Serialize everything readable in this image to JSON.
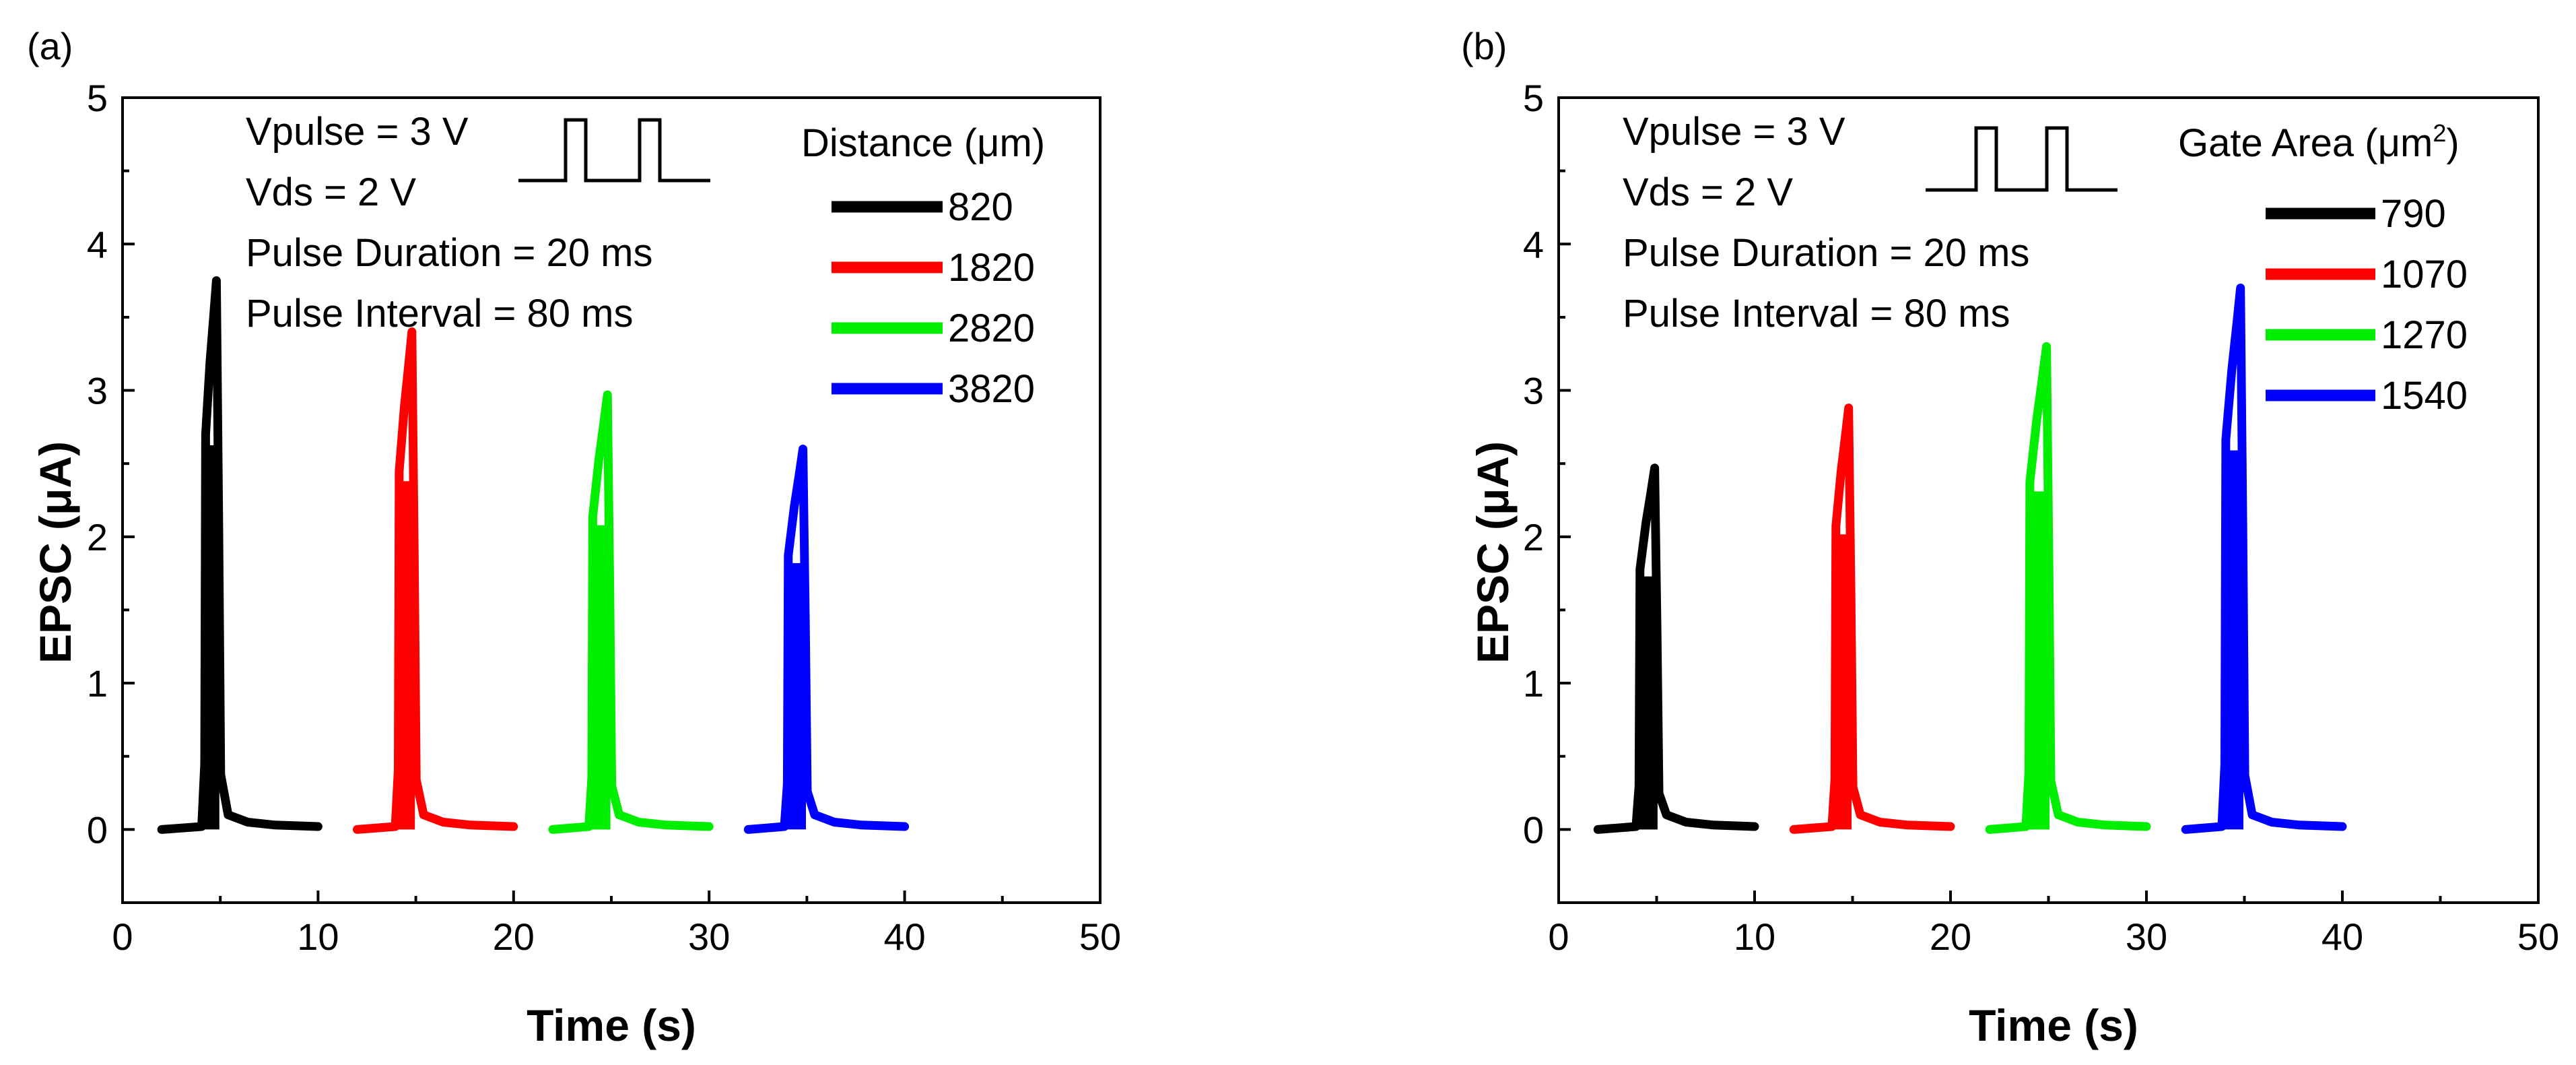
{
  "chart_data": [
    {
      "type": "line",
      "panel_label": "(a)",
      "xlabel": "Time (s)",
      "ylabel": "EPSC (μA)",
      "xlim": [
        0,
        50
      ],
      "ylim": [
        -0.5,
        5
      ],
      "xticks": [
        0,
        10,
        20,
        30,
        40,
        50
      ],
      "yticks": [
        0,
        1,
        2,
        3,
        4,
        5
      ],
      "annotations": [
        "Vpulse = 3 V",
        "Vds = 2 V",
        "Pulse Duration = 20 ms",
        "Pulse Interval = 80 ms"
      ],
      "legend_title": "Distance (μm)",
      "legend_title_sup": "",
      "legend_title_end": "",
      "series": [
        {
          "name": "820",
          "color": "#000000",
          "start": 2,
          "end": 10,
          "rise": 4.2,
          "peak_time": 4.8,
          "peak": 3.75
        },
        {
          "name": "1820",
          "color": "#ff0000",
          "start": 12,
          "end": 20,
          "rise": 14.1,
          "peak_time": 14.8,
          "peak": 3.4
        },
        {
          "name": "2820",
          "color": "#00ee00",
          "start": 22,
          "end": 30,
          "rise": 24.0,
          "peak_time": 24.8,
          "peak": 2.97
        },
        {
          "name": "3820",
          "color": "#0000ff",
          "start": 32,
          "end": 40,
          "rise": 34.0,
          "peak_time": 34.8,
          "peak": 2.6
        }
      ]
    },
    {
      "type": "line",
      "panel_label": "(b)",
      "xlabel": "Time (s)",
      "ylabel": "EPSC (μA)",
      "xlim": [
        0,
        50
      ],
      "ylim": [
        -0.5,
        5
      ],
      "xticks": [
        0,
        10,
        20,
        30,
        40,
        50
      ],
      "yticks": [
        0,
        1,
        2,
        3,
        4,
        5
      ],
      "annotations": [
        "Vpulse = 3 V",
        "Vds = 2 V",
        "Pulse Duration = 20 ms",
        "Pulse Interval = 80 ms"
      ],
      "legend_title": "Gate Area (μm",
      "legend_title_sup": "2",
      "legend_title_end": ")",
      "series": [
        {
          "name": "790",
          "color": "#000000",
          "start": 2,
          "end": 10,
          "rise": 4.1,
          "peak_time": 4.9,
          "peak": 2.47
        },
        {
          "name": "1070",
          "color": "#ff0000",
          "start": 12,
          "end": 20,
          "rise": 14.1,
          "peak_time": 14.8,
          "peak": 2.88
        },
        {
          "name": "1270",
          "color": "#00ee00",
          "start": 22,
          "end": 30,
          "rise": 24.0,
          "peak_time": 24.9,
          "peak": 3.3
        },
        {
          "name": "1540",
          "color": "#0000ff",
          "start": 32,
          "end": 40,
          "rise": 34.0,
          "peak_time": 34.8,
          "peak": 3.7
        }
      ]
    }
  ]
}
